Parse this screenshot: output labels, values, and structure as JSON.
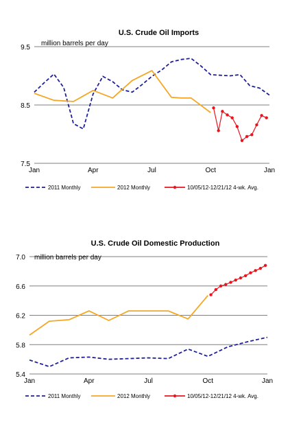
{
  "chart_data": [
    {
      "type": "line",
      "title": "U.S. Crude Oil Imports",
      "unit_label": "million barrels per day",
      "ylim": [
        7.5,
        9.5
      ],
      "yticks": [
        "9.5",
        "8.5",
        "7.5"
      ],
      "xticks": [
        "Jan",
        "Apr",
        "Jul",
        "Oct",
        "Jan"
      ],
      "grid": "horizontal",
      "legend_position": "bottom",
      "series": [
        {
          "name": "2011 Monthly",
          "color": "#1f1f99",
          "style": "dashed",
          "x": [
            0,
            0.5,
            1,
            1.5,
            2,
            2.5,
            3,
            3.5,
            4,
            4.5,
            5,
            5.5,
            6,
            6.5,
            7,
            7.5,
            8,
            8.5,
            9,
            9.5,
            10,
            10.5,
            11,
            11.5,
            12
          ],
          "values": [
            8.72,
            8.88,
            9.03,
            8.8,
            8.18,
            8.09,
            8.69,
            8.99,
            8.9,
            8.76,
            8.72,
            8.85,
            8.99,
            9.1,
            9.24,
            9.28,
            9.3,
            9.17,
            9.02,
            9.01,
            9.0,
            9.02,
            8.83,
            8.79,
            8.67
          ]
        },
        {
          "name": "2012 Monthly",
          "color": "#f5a623",
          "style": "solid",
          "x": [
            0,
            1,
            2,
            3,
            4,
            5,
            6,
            7,
            7.5,
            8,
            9
          ],
          "values": [
            8.7,
            8.58,
            8.56,
            8.75,
            8.62,
            8.92,
            9.09,
            8.63,
            8.62,
            8.62,
            8.37
          ]
        },
        {
          "name": "10/05/12-12/21/12 4-wk. Avg.",
          "color": "#e8141e",
          "style": "solid-marker",
          "x": [
            9.15,
            9.4,
            9.6,
            9.85,
            10.1,
            10.35,
            10.6,
            10.85,
            11.1,
            11.35,
            11.6,
            11.85
          ],
          "values": [
            8.45,
            8.06,
            8.39,
            8.33,
            8.28,
            8.13,
            7.89,
            7.96,
            7.99,
            8.16,
            8.32,
            8.28
          ]
        }
      ]
    },
    {
      "type": "line",
      "title": "U.S. Crude Oil Domestic Production",
      "unit_label": "million barrels per day",
      "ylim": [
        5.4,
        7.0
      ],
      "yticks": [
        "7.0",
        "6.6",
        "6.2",
        "5.8",
        "5.4"
      ],
      "xticks": [
        "Jan",
        "Apr",
        "Jul",
        "Oct",
        "Jan"
      ],
      "grid": "horizontal",
      "legend_position": "bottom",
      "series": [
        {
          "name": "2011 Monthly",
          "color": "#1f1f99",
          "style": "dashed",
          "x": [
            0,
            1,
            2,
            3,
            4,
            5,
            6,
            7,
            8,
            9,
            10,
            11,
            12
          ],
          "values": [
            5.59,
            5.5,
            5.62,
            5.63,
            5.6,
            5.61,
            5.62,
            5.61,
            5.74,
            5.64,
            5.77,
            5.84,
            5.9
          ]
        },
        {
          "name": "2012 Monthly",
          "color": "#f5a623",
          "style": "solid",
          "x": [
            0,
            1,
            2,
            3,
            4,
            5,
            6,
            7,
            8,
            9
          ],
          "values": [
            5.93,
            6.12,
            6.14,
            6.26,
            6.13,
            6.26,
            6.26,
            6.26,
            6.15,
            6.47
          ]
        },
        {
          "name": "10/05/12-12/21/12 4-wk. Avg.",
          "color": "#e8141e",
          "style": "solid-marker",
          "x": [
            9.15,
            9.4,
            9.65,
            9.9,
            10.15,
            10.4,
            10.65,
            10.9,
            11.15,
            11.4,
            11.65,
            11.9
          ],
          "values": [
            6.48,
            6.55,
            6.6,
            6.62,
            6.65,
            6.68,
            6.71,
            6.74,
            6.78,
            6.81,
            6.84,
            6.88
          ]
        }
      ]
    }
  ]
}
